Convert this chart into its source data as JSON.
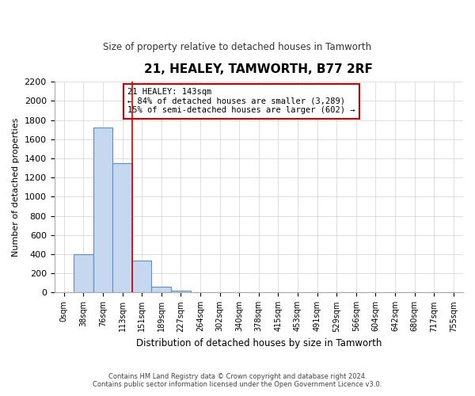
{
  "title": "21, HEALEY, TAMWORTH, B77 2RF",
  "subtitle": "Size of property relative to detached houses in Tamworth",
  "xlabel": "Distribution of detached houses by size in Tamworth",
  "ylabel": "Number of detached properties",
  "bar_color": "#c5d8f0",
  "bar_edge_color": "#5b8ec4",
  "vline_color": "#cc0000",
  "vline_x": 4,
  "annotation_text": "21 HEALEY: 143sqm\n← 84% of detached houses are smaller (3,289)\n15% of semi-detached houses are larger (602) →",
  "annotation_box_color": "#ffffff",
  "annotation_box_edge_color": "#cc0000",
  "categories": [
    "0sqm",
    "38sqm",
    "76sqm",
    "113sqm",
    "151sqm",
    "189sqm",
    "227sqm",
    "264sqm",
    "302sqm",
    "340sqm",
    "378sqm",
    "415sqm",
    "453sqm",
    "491sqm",
    "529sqm",
    "566sqm",
    "604sqm",
    "642sqm",
    "680sqm",
    "717sqm",
    "755sqm"
  ],
  "values": [
    0,
    400,
    1720,
    1350,
    330,
    65,
    20,
    0,
    0,
    0,
    0,
    0,
    0,
    0,
    0,
    0,
    0,
    0,
    0,
    0,
    0
  ],
  "ylim": [
    0,
    2200
  ],
  "yticks": [
    0,
    200,
    400,
    600,
    800,
    1000,
    1200,
    1400,
    1600,
    1800,
    2000,
    2200
  ],
  "footer_line1": "Contains HM Land Registry data © Crown copyright and database right 2024.",
  "footer_line2": "Contains public sector information licensed under the Open Government Licence v3.0.",
  "background_color": "#ffffff",
  "grid_color": "#d0d0d8"
}
